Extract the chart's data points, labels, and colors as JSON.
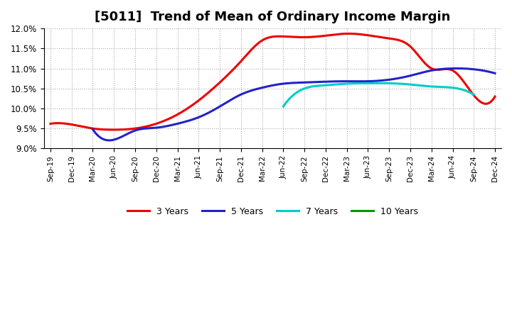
{
  "title": "[5011]  Trend of Mean of Ordinary Income Margin",
  "ylim": [
    9.0,
    12.0
  ],
  "yticks": [
    9.0,
    9.5,
    10.0,
    10.5,
    11.0,
    11.5,
    12.0
  ],
  "ytick_labels": [
    "9.0%",
    "9.5%",
    "10.0%",
    "10.5%",
    "11.0%",
    "11.5%",
    "12.0%"
  ],
  "x_labels": [
    "Sep-19",
    "Dec-19",
    "Mar-20",
    "Jun-20",
    "Sep-20",
    "Dec-20",
    "Mar-21",
    "Jun-21",
    "Sep-21",
    "Dec-21",
    "Mar-22",
    "Jun-22",
    "Sep-22",
    "Dec-22",
    "Mar-23",
    "Jun-23",
    "Sep-23",
    "Dec-23",
    "Mar-24",
    "Jun-24",
    "Sep-24",
    "Dec-24"
  ],
  "line_3y_x": [
    0,
    1,
    2,
    3,
    4,
    5,
    6,
    7,
    8,
    9,
    10,
    11,
    12,
    13,
    14,
    15,
    16,
    17,
    18,
    19,
    20,
    21
  ],
  "line_3y_y": [
    9.62,
    9.6,
    9.5,
    9.47,
    9.5,
    9.62,
    9.85,
    10.2,
    10.65,
    11.18,
    11.7,
    11.8,
    11.78,
    11.82,
    11.87,
    11.83,
    11.75,
    11.55,
    11.0,
    10.95,
    10.33,
    10.3
  ],
  "line_5y_x": [
    2,
    3,
    4,
    5,
    6,
    7,
    8,
    9,
    10,
    11,
    12,
    13,
    14,
    15,
    16,
    17,
    18,
    19,
    20,
    21
  ],
  "line_5y_y": [
    9.48,
    9.22,
    9.45,
    9.52,
    9.62,
    9.78,
    10.05,
    10.35,
    10.52,
    10.62,
    10.65,
    10.67,
    10.68,
    10.68,
    10.72,
    10.82,
    10.95,
    11.0,
    10.98,
    10.88
  ],
  "line_7y_x": [
    11,
    12,
    13,
    14,
    15,
    16,
    17,
    18,
    19,
    20
  ],
  "line_7y_y": [
    10.05,
    10.5,
    10.58,
    10.62,
    10.63,
    10.63,
    10.6,
    10.55,
    10.52,
    10.35
  ],
  "line_10y_x": [],
  "line_10y_y": [],
  "color_3y": "#ee0000",
  "color_5y": "#2222cc",
  "color_7y": "#00cccc",
  "color_10y": "#009900",
  "linewidth": 2.2,
  "background_color": "#ffffff",
  "grid_color": "#aaaaaa",
  "title_fontsize": 13,
  "legend_labels": [
    "3 Years",
    "5 Years",
    "7 Years",
    "10 Years"
  ]
}
